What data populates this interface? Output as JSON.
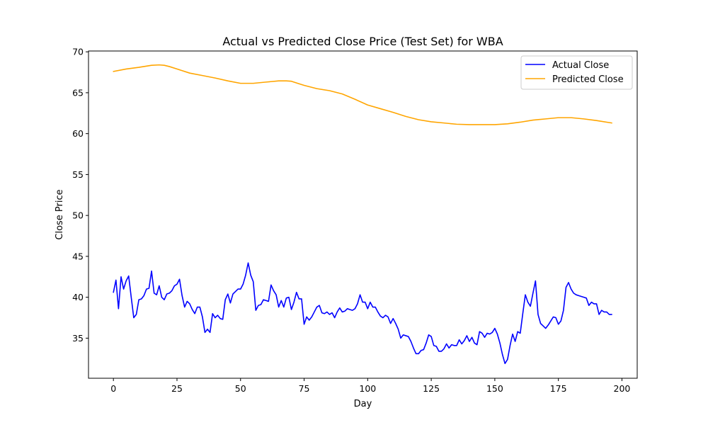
{
  "chart_data": {
    "type": "line",
    "title": "Actual vs Predicted Close Price (Test Set) for WBA",
    "xlabel": "Day",
    "ylabel": "Close Price",
    "xlim": [
      -9.8,
      206
    ],
    "ylim": [
      30.1,
      70.1
    ],
    "xticks": [
      0,
      25,
      50,
      75,
      100,
      125,
      150,
      175,
      200
    ],
    "yticks": [
      35,
      40,
      45,
      50,
      55,
      60,
      65,
      70
    ],
    "grid": false,
    "legend_position": "top-right",
    "series": [
      {
        "name": "Actual Close",
        "color": "#0000ff",
        "x": [
          0,
          1,
          2,
          3,
          4,
          5,
          6,
          7,
          8,
          9,
          10,
          11,
          12,
          13,
          14,
          15,
          16,
          17,
          18,
          19,
          20,
          21,
          22,
          23,
          24,
          25,
          26,
          27,
          28,
          29,
          30,
          31,
          32,
          33,
          34,
          35,
          36,
          37,
          38,
          39,
          40,
          41,
          42,
          43,
          44,
          45,
          46,
          47,
          48,
          49,
          50,
          51,
          52,
          53,
          54,
          55,
          56,
          57,
          58,
          59,
          60,
          61,
          62,
          63,
          64,
          65,
          66,
          67,
          68,
          69,
          70,
          71,
          72,
          73,
          74,
          75,
          76,
          77,
          78,
          79,
          80,
          81,
          82,
          83,
          84,
          85,
          86,
          87,
          88,
          89,
          90,
          91,
          92,
          93,
          94,
          95,
          96,
          97,
          98,
          99,
          100,
          101,
          102,
          103,
          104,
          105,
          106,
          107,
          108,
          109,
          110,
          111,
          112,
          113,
          114,
          115,
          116,
          117,
          118,
          119,
          120,
          121,
          122,
          123,
          124,
          125,
          126,
          127,
          128,
          129,
          130,
          131,
          132,
          133,
          134,
          135,
          136,
          137,
          138,
          139,
          140,
          141,
          142,
          143,
          144,
          145,
          146,
          147,
          148,
          149,
          150,
          151,
          152,
          153,
          154,
          155,
          156,
          157,
          158,
          159,
          160,
          161,
          162,
          163,
          164,
          165,
          166,
          167,
          168,
          169,
          170,
          171,
          172,
          173,
          174,
          175,
          176,
          177,
          178,
          179,
          180,
          181,
          182,
          183,
          184,
          185,
          186,
          187,
          188,
          189,
          190,
          191,
          192,
          193,
          194,
          195,
          196
        ],
        "y": [
          40.6,
          42.1,
          38.6,
          42.5,
          41.0,
          42.0,
          42.6,
          40.0,
          37.5,
          37.9,
          39.7,
          39.8,
          40.2,
          41.0,
          41.1,
          43.2,
          40.5,
          40.3,
          41.4,
          40.0,
          39.7,
          40.4,
          40.5,
          40.8,
          41.4,
          41.6,
          42.2,
          40.2,
          38.8,
          39.5,
          39.2,
          38.5,
          38.0,
          38.8,
          38.8,
          37.6,
          35.7,
          36.1,
          35.7,
          38.0,
          37.5,
          37.8,
          37.4,
          37.3,
          39.7,
          40.4,
          39.3,
          40.4,
          40.7,
          41.0,
          41.0,
          41.6,
          42.7,
          44.2,
          42.7,
          41.9,
          38.4,
          39.0,
          39.1,
          39.7,
          39.6,
          39.5,
          41.5,
          40.8,
          40.3,
          38.8,
          39.6,
          38.8,
          39.9,
          40.0,
          38.5,
          39.4,
          40.6,
          39.8,
          39.8,
          36.7,
          37.6,
          37.2,
          37.6,
          38.2,
          38.8,
          39.0,
          38.1,
          38.0,
          38.2,
          37.9,
          38.1,
          37.5,
          38.2,
          38.7,
          38.2,
          38.3,
          38.6,
          38.5,
          38.4,
          38.6,
          39.2,
          40.3,
          39.4,
          39.4,
          38.6,
          39.4,
          38.8,
          38.8,
          38.2,
          37.7,
          37.5,
          37.8,
          37.6,
          36.8,
          37.4,
          36.8,
          36.1,
          35.0,
          35.4,
          35.3,
          35.2,
          34.6,
          33.8,
          33.1,
          33.1,
          33.5,
          33.6,
          34.4,
          35.4,
          35.2,
          34.1,
          34.0,
          33.4,
          33.4,
          33.7,
          34.3,
          33.8,
          34.2,
          34.1,
          34.1,
          34.8,
          34.3,
          34.7,
          35.3,
          34.6,
          35.1,
          34.4,
          34.2,
          35.8,
          35.6,
          35.1,
          35.6,
          35.5,
          35.7,
          36.2,
          35.5,
          34.4,
          33.0,
          31.9,
          32.4,
          34.1,
          35.5,
          34.6,
          35.8,
          35.6,
          38.0,
          40.3,
          39.4,
          38.9,
          40.5,
          42.0,
          37.9,
          36.8,
          36.5,
          36.2,
          36.6,
          37.1,
          37.6,
          37.5,
          36.7,
          37.1,
          38.4,
          41.2,
          41.8,
          41.0,
          40.5,
          40.3,
          40.2,
          40.1,
          40.0,
          39.9,
          39.0,
          39.4,
          39.2,
          39.2,
          37.9,
          38.4,
          38.2,
          38.2,
          37.9,
          37.9
        ]
      },
      {
        "name": "Predicted Close",
        "color": "#ffa500",
        "x": [
          0,
          5,
          10,
          15,
          18,
          20,
          22,
          25,
          30,
          35,
          40,
          45,
          50,
          55,
          60,
          65,
          68,
          70,
          73,
          75,
          80,
          85,
          90,
          95,
          100,
          105,
          110,
          115,
          120,
          125,
          130,
          135,
          140,
          145,
          150,
          155,
          160,
          165,
          170,
          175,
          178,
          180,
          185,
          190,
          196
        ],
        "y": [
          67.6,
          67.9,
          68.1,
          68.35,
          68.4,
          68.35,
          68.2,
          67.9,
          67.4,
          67.1,
          66.8,
          66.45,
          66.15,
          66.15,
          66.3,
          66.45,
          66.45,
          66.4,
          66.1,
          65.9,
          65.5,
          65.25,
          64.85,
          64.2,
          63.5,
          63.05,
          62.6,
          62.1,
          61.7,
          61.45,
          61.3,
          61.15,
          61.1,
          61.1,
          61.1,
          61.2,
          61.4,
          61.65,
          61.8,
          61.95,
          61.95,
          61.95,
          61.8,
          61.6,
          61.3
        ]
      }
    ]
  }
}
